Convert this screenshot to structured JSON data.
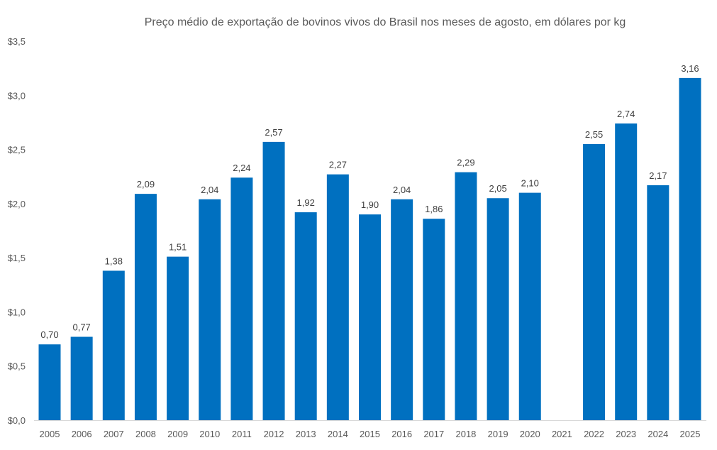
{
  "chart_data": {
    "type": "bar",
    "title": "Preço médio de exportação de bovinos vivos do Brasil nos meses de agosto, em dólares por kg",
    "xlabel": "",
    "ylabel": "",
    "ylim": [
      0,
      3.5
    ],
    "yticks": [
      "$0,0",
      "$0,5",
      "$1,0",
      "$1,5",
      "$2,0",
      "$2,5",
      "$3,0",
      "$3,5"
    ],
    "ytick_values": [
      0,
      0.5,
      1,
      1.5,
      2,
      2.5,
      3,
      3.5
    ],
    "grid": false,
    "bar_color": "#0070C0",
    "categories": [
      "2005",
      "2006",
      "2007",
      "2008",
      "2009",
      "2010",
      "2011",
      "2012",
      "2013",
      "2014",
      "2015",
      "2016",
      "2017",
      "2018",
      "2019",
      "2020",
      "2021",
      "2022",
      "2023",
      "2024",
      "2025"
    ],
    "values": [
      0.7,
      0.77,
      1.38,
      2.09,
      1.51,
      2.04,
      2.24,
      2.57,
      1.92,
      2.27,
      1.9,
      2.04,
      1.86,
      2.29,
      2.05,
      2.1,
      null,
      2.55,
      2.74,
      2.17,
      3.16
    ],
    "data_labels": [
      "0,70",
      "0,77",
      "1,38",
      "2,09",
      "1,51",
      "2,04",
      "2,24",
      "2,57",
      "1,92",
      "2,27",
      "1,90",
      "2,04",
      "1,86",
      "2,29",
      "2,05",
      "2,10",
      "",
      "2,55",
      "2,74",
      "2,17",
      "3,16"
    ]
  }
}
